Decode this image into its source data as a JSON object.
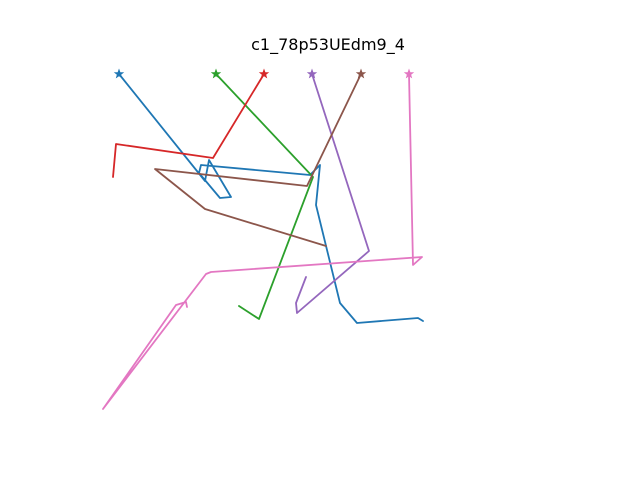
{
  "title": "c1_78p53UEdm9_4",
  "trajectories": [
    {
      "id": "blue",
      "color": "#1f77b4",
      "points": [
        [
          119,
          74
        ],
        [
          205,
          181
        ],
        [
          209,
          160
        ],
        [
          231,
          197
        ],
        [
          220,
          198
        ],
        [
          199,
          173
        ],
        [
          201,
          165
        ],
        [
          310,
          175
        ],
        [
          320,
          165
        ],
        [
          316,
          205
        ],
        [
          340,
          303
        ],
        [
          357,
          323
        ],
        [
          418,
          318
        ],
        [
          423,
          321
        ]
      ]
    },
    {
      "id": "green",
      "color": "#2ca02c",
      "points": [
        [
          216,
          74
        ],
        [
          313,
          177
        ],
        [
          259,
          319
        ],
        [
          239,
          306
        ]
      ]
    },
    {
      "id": "red",
      "color": "#d62728",
      "points": [
        [
          264,
          74
        ],
        [
          213,
          158
        ],
        [
          116,
          144
        ],
        [
          113,
          177
        ]
      ]
    },
    {
      "id": "purple",
      "color": "#9467bd",
      "points": [
        [
          312,
          74
        ],
        [
          369,
          251
        ],
        [
          297,
          313
        ],
        [
          296,
          303
        ],
        [
          306,
          277
        ]
      ]
    },
    {
      "id": "brown",
      "color": "#8c564b",
      "points": [
        [
          361,
          74
        ],
        [
          307,
          186
        ],
        [
          155,
          169
        ],
        [
          205,
          209
        ],
        [
          326,
          246
        ]
      ]
    },
    {
      "id": "pink",
      "color": "#e377c2",
      "points": [
        [
          409,
          74
        ],
        [
          413,
          265
        ],
        [
          422,
          257
        ],
        [
          211,
          272
        ],
        [
          206,
          274
        ],
        [
          103,
          409
        ],
        [
          176,
          305
        ],
        [
          186,
          302
        ],
        [
          187,
          307
        ]
      ]
    }
  ]
}
